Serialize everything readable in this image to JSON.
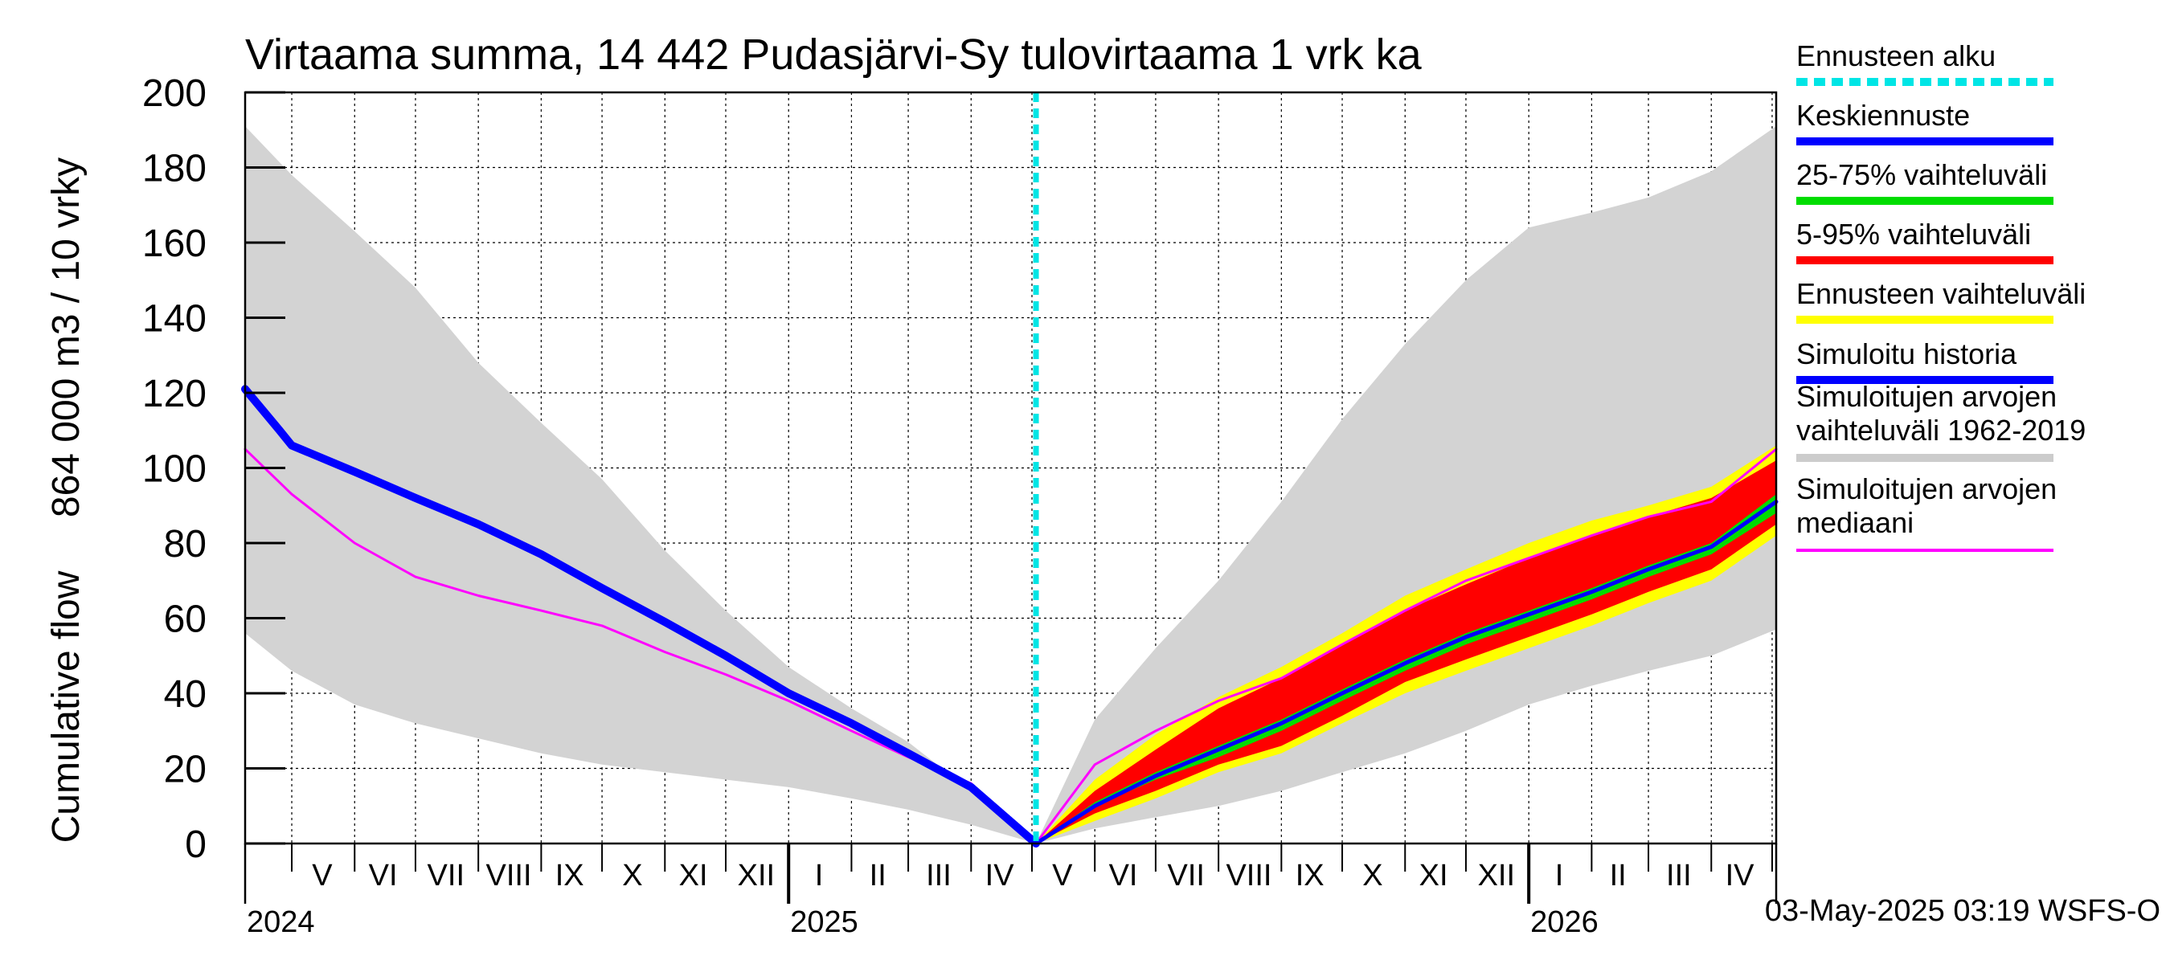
{
  "chart_data": {
    "type": "area",
    "title": "Virtaama summa, 14 442 Pudasjärvi-Sy tulovirtaama 1 vrk ka",
    "ylabel_line1": "Cumulative flow",
    "ylabel_line2": "864 000 m3 / 10 vrky",
    "ylim": [
      0,
      200
    ],
    "yticks": [
      0,
      20,
      40,
      60,
      80,
      100,
      120,
      140,
      160,
      180,
      200
    ],
    "x_range": [
      "2024-04-08",
      "2026-05-03"
    ],
    "forecast_start": "2025-05-03",
    "grid": true,
    "legend_position": "right",
    "month_labels": [
      {
        "label": "V",
        "date": "2024-05-16"
      },
      {
        "label": "VI",
        "date": "2024-06-15"
      },
      {
        "label": "VII",
        "date": "2024-07-16"
      },
      {
        "label": "VIII",
        "date": "2024-08-16"
      },
      {
        "label": "IX",
        "date": "2024-09-15"
      },
      {
        "label": "X",
        "date": "2024-10-16"
      },
      {
        "label": "XI",
        "date": "2024-11-15"
      },
      {
        "label": "XII",
        "date": "2024-12-16"
      },
      {
        "label": "I",
        "date": "2025-01-16"
      },
      {
        "label": "II",
        "date": "2025-02-14"
      },
      {
        "label": "III",
        "date": "2025-03-16"
      },
      {
        "label": "IV",
        "date": "2025-04-15"
      },
      {
        "label": "V",
        "date": "2025-05-16"
      },
      {
        "label": "VI",
        "date": "2025-06-15"
      },
      {
        "label": "VII",
        "date": "2025-07-16"
      },
      {
        "label": "VIII",
        "date": "2025-08-16"
      },
      {
        "label": "IX",
        "date": "2025-09-15"
      },
      {
        "label": "X",
        "date": "2025-10-16"
      },
      {
        "label": "XI",
        "date": "2025-11-15"
      },
      {
        "label": "XII",
        "date": "2025-12-16"
      },
      {
        "label": "I",
        "date": "2026-01-16"
      },
      {
        "label": "II",
        "date": "2026-02-14"
      },
      {
        "label": "III",
        "date": "2026-03-16"
      },
      {
        "label": "IV",
        "date": "2026-04-15"
      }
    ],
    "year_labels": [
      {
        "label": "2024",
        "date": "2024-04-08"
      },
      {
        "label": "2025",
        "date": "2025-01-01"
      },
      {
        "label": "2026",
        "date": "2026-01-01"
      }
    ],
    "legend": [
      {
        "label": "Ennusteen alku",
        "color": "#00e5e5",
        "style": "dashed"
      },
      {
        "label": "Keskiennuste",
        "color": "#0000ff",
        "style": "solid"
      },
      {
        "label": "25-75% vaihteluväli",
        "color": "#00dd00",
        "style": "solid"
      },
      {
        "label": "5-95% vaihteluväli",
        "color": "#ff0000",
        "style": "solid"
      },
      {
        "label": "Ennusteen vaihteluväli",
        "color": "#ffff00",
        "style": "solid"
      },
      {
        "label": "Simuloitu historia",
        "color": "#0000ff",
        "style": "solid"
      },
      {
        "label": "Simuloitujen arvojen vaihteluväli 1962-2019",
        "color": "#cccccc",
        "style": "solid"
      },
      {
        "label": "Simuloitujen arvojen mediaani",
        "color": "#ff00ff",
        "style": "solid"
      }
    ],
    "series": [
      {
        "name": "Simuloitujen arvojen vaihteluväli 1962-2019",
        "kind": "band",
        "color": "#d3d3d3",
        "x": [
          "2024-04-08",
          "2024-05-01",
          "2024-06-01",
          "2024-07-01",
          "2024-08-01",
          "2024-09-01",
          "2024-10-01",
          "2024-11-01",
          "2024-12-01",
          "2025-01-01",
          "2025-02-01",
          "2025-03-01",
          "2025-04-01",
          "2025-05-03",
          "2025-06-01",
          "2025-07-01",
          "2025-08-01",
          "2025-09-01",
          "2025-10-01",
          "2025-11-01",
          "2025-12-01",
          "2026-01-01",
          "2026-02-01",
          "2026-03-01",
          "2026-04-01",
          "2026-05-03"
        ],
        "upper": [
          191,
          178,
          163,
          148,
          128,
          112,
          97,
          78,
          62,
          47,
          36,
          27,
          14,
          0,
          33,
          52,
          70,
          91,
          113,
          133,
          150,
          164,
          168,
          172,
          179,
          191
        ],
        "lower": [
          56,
          46,
          37,
          32,
          28,
          24,
          21,
          19,
          17,
          15,
          12,
          9,
          5,
          0,
          4,
          7,
          10,
          14,
          19,
          24,
          30,
          37,
          42,
          46,
          50,
          57
        ]
      },
      {
        "name": "Ennusteen vaihteluväli",
        "kind": "band",
        "color": "#ffff00",
        "x": [
          "2025-05-03",
          "2025-06-01",
          "2025-07-01",
          "2025-08-01",
          "2025-09-01",
          "2025-10-01",
          "2025-11-01",
          "2025-12-01",
          "2026-01-01",
          "2026-02-01",
          "2026-03-01",
          "2026-04-01",
          "2026-05-03"
        ],
        "upper": [
          0,
          17,
          29,
          39,
          47,
          56,
          66,
          73,
          80,
          86,
          90,
          95,
          106
        ],
        "lower": [
          0,
          6,
          12,
          19,
          24,
          32,
          40,
          46,
          52,
          58,
          64,
          70,
          82
        ]
      },
      {
        "name": "5-95% vaihteluväli",
        "kind": "band",
        "color": "#ff0000",
        "x": [
          "2025-05-03",
          "2025-06-01",
          "2025-07-01",
          "2025-08-01",
          "2025-09-01",
          "2025-10-01",
          "2025-11-01",
          "2025-12-01",
          "2026-01-01",
          "2026-02-01",
          "2026-03-01",
          "2026-04-01",
          "2026-05-03"
        ],
        "upper": [
          0,
          14,
          25,
          36,
          44,
          53,
          62,
          69,
          76,
          82,
          87,
          92,
          102
        ],
        "lower": [
          0,
          8,
          14,
          21,
          26,
          34,
          43,
          49,
          55,
          61,
          67,
          73,
          85
        ]
      },
      {
        "name": "25-75% vaihteluväli",
        "kind": "band",
        "color": "#00dd00",
        "x": [
          "2025-05-03",
          "2025-06-01",
          "2025-07-01",
          "2025-08-01",
          "2025-09-01",
          "2025-10-01",
          "2025-11-01",
          "2025-12-01",
          "2026-01-01",
          "2026-02-01",
          "2026-03-01",
          "2026-04-01",
          "2026-05-03"
        ],
        "upper": [
          0,
          11,
          19,
          26,
          33,
          41,
          49,
          56,
          62,
          68,
          74,
          80,
          93
        ],
        "lower": [
          0,
          10,
          17,
          23,
          30,
          38,
          46,
          53,
          59,
          65,
          71,
          77,
          88
        ]
      },
      {
        "name": "Simuloitujen arvojen mediaani",
        "kind": "line",
        "color": "#ff00ff",
        "width": 3,
        "x": [
          "2024-04-08",
          "2024-05-01",
          "2024-06-01",
          "2024-07-01",
          "2024-08-01",
          "2024-09-01",
          "2024-10-01",
          "2024-11-01",
          "2024-12-01",
          "2025-01-01",
          "2025-02-01",
          "2025-03-01",
          "2025-04-01",
          "2025-05-03",
          "2025-06-01",
          "2025-07-01",
          "2025-08-01",
          "2025-09-01",
          "2025-10-01",
          "2025-11-01",
          "2025-12-01",
          "2026-01-01",
          "2026-02-01",
          "2026-03-01",
          "2026-04-01",
          "2026-05-03"
        ],
        "y": [
          105,
          93,
          80,
          71,
          66,
          62,
          58,
          51,
          45,
          38,
          30,
          23,
          16,
          0,
          21,
          30,
          38,
          44,
          53,
          62,
          70,
          76,
          82,
          87,
          91,
          105
        ]
      },
      {
        "name": "Simuloitu historia",
        "kind": "line",
        "color": "#0000ff",
        "width": 10,
        "x": [
          "2024-04-08",
          "2024-04-25",
          "2024-05-01",
          "2024-06-01",
          "2024-07-01",
          "2024-08-01",
          "2024-09-01",
          "2024-10-01",
          "2024-11-01",
          "2024-12-01",
          "2025-01-01",
          "2025-02-01",
          "2025-03-01",
          "2025-04-01",
          "2025-05-03"
        ],
        "y": [
          121,
          110,
          106,
          99,
          92,
          85,
          77,
          68,
          59,
          50,
          40,
          32,
          24,
          15,
          0
        ]
      },
      {
        "name": "Keskiennuste",
        "kind": "line",
        "color": "#0000ff",
        "width": 5,
        "x": [
          "2025-05-03",
          "2025-06-01",
          "2025-07-01",
          "2025-08-01",
          "2025-09-01",
          "2025-10-01",
          "2025-11-01",
          "2025-12-01",
          "2026-01-01",
          "2026-02-01",
          "2026-03-01",
          "2026-04-01",
          "2026-05-03"
        ],
        "y": [
          0,
          10,
          18,
          25,
          32,
          40,
          48,
          55,
          61,
          67,
          73,
          79,
          91
        ]
      }
    ],
    "footer": "03-May-2025 03:19 WSFS-O"
  }
}
